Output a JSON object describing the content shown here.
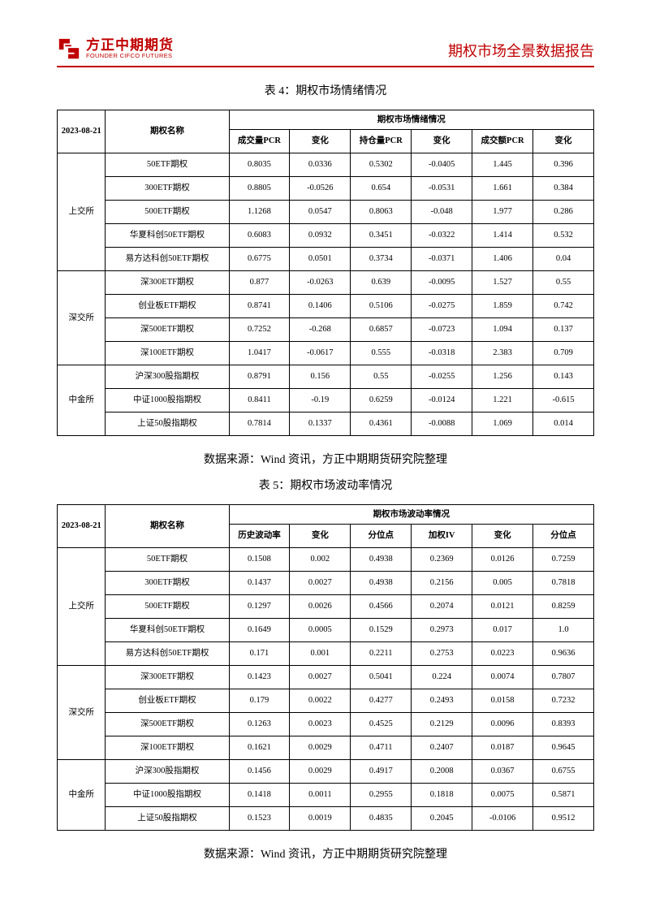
{
  "header": {
    "logo_cn": "方正中期期货",
    "logo_en": "FOUNDER CIFCO FUTURES",
    "report_title": "期权市场全景数据报告",
    "brand_color": "#c00000"
  },
  "date_label": "2023-08-21",
  "name_header": "期权名称",
  "source_line": "数据来源：Wind 资讯，方正中期期货研究院整理",
  "table4": {
    "caption": "表 4：期权市场情绪情况",
    "super_header": "期权市场情绪情况",
    "columns": [
      "成交量PCR",
      "变化",
      "持仓量PCR",
      "变化",
      "成交额PCR",
      "变化"
    ],
    "groups": [
      {
        "exchange": "上交所",
        "rows": [
          {
            "name": "50ETF期权",
            "v": [
              "0.8035",
              "0.0336",
              "0.5302",
              "-0.0405",
              "1.445",
              "0.396"
            ]
          },
          {
            "name": "300ETF期权",
            "v": [
              "0.8805",
              "-0.0526",
              "0.654",
              "-0.0531",
              "1.661",
              "0.384"
            ]
          },
          {
            "name": "500ETF期权",
            "v": [
              "1.1268",
              "0.0547",
              "0.8063",
              "-0.048",
              "1.977",
              "0.286"
            ]
          },
          {
            "name": "华夏科创50ETF期权",
            "v": [
              "0.6083",
              "0.0932",
              "0.3451",
              "-0.0322",
              "1.414",
              "0.532"
            ]
          },
          {
            "name": "易方达科创50ETF期权",
            "v": [
              "0.6775",
              "0.0501",
              "0.3734",
              "-0.0371",
              "1.406",
              "0.04"
            ]
          }
        ]
      },
      {
        "exchange": "深交所",
        "rows": [
          {
            "name": "深300ETF期权",
            "v": [
              "0.877",
              "-0.0263",
              "0.639",
              "-0.0095",
              "1.527",
              "0.55"
            ]
          },
          {
            "name": "创业板ETF期权",
            "v": [
              "0.8741",
              "0.1406",
              "0.5106",
              "-0.0275",
              "1.859",
              "0.742"
            ]
          },
          {
            "name": "深500ETF期权",
            "v": [
              "0.7252",
              "-0.268",
              "0.6857",
              "-0.0723",
              "1.094",
              "0.137"
            ]
          },
          {
            "name": "深100ETF期权",
            "v": [
              "1.0417",
              "-0.0617",
              "0.555",
              "-0.0318",
              "2.383",
              "0.709"
            ]
          }
        ]
      },
      {
        "exchange": "中金所",
        "rows": [
          {
            "name": "沪深300股指期权",
            "v": [
              "0.8791",
              "0.156",
              "0.55",
              "-0.0255",
              "1.256",
              "0.143"
            ]
          },
          {
            "name": "中证1000股指期权",
            "v": [
              "0.8411",
              "-0.19",
              "0.6259",
              "-0.0124",
              "1.221",
              "-0.615"
            ]
          },
          {
            "name": "上证50股指期权",
            "v": [
              "0.7814",
              "0.1337",
              "0.4361",
              "-0.0088",
              "1.069",
              "0.014"
            ]
          }
        ]
      }
    ]
  },
  "table5": {
    "caption": "表 5：期权市场波动率情况",
    "super_header": "期权市场波动率情况",
    "columns": [
      "历史波动率",
      "变化",
      "分位点",
      "加权IV",
      "变化",
      "分位点"
    ],
    "groups": [
      {
        "exchange": "上交所",
        "rows": [
          {
            "name": "50ETF期权",
            "v": [
              "0.1508",
              "0.002",
              "0.4938",
              "0.2369",
              "0.0126",
              "0.7259"
            ]
          },
          {
            "name": "300ETF期权",
            "v": [
              "0.1437",
              "0.0027",
              "0.4938",
              "0.2156",
              "0.005",
              "0.7818"
            ]
          },
          {
            "name": "500ETF期权",
            "v": [
              "0.1297",
              "0.0026",
              "0.4566",
              "0.2074",
              "0.0121",
              "0.8259"
            ]
          },
          {
            "name": "华夏科创50ETF期权",
            "v": [
              "0.1649",
              "0.0005",
              "0.1529",
              "0.2973",
              "0.017",
              "1.0"
            ]
          },
          {
            "name": "易方达科创50ETF期权",
            "v": [
              "0.171",
              "0.001",
              "0.2211",
              "0.2753",
              "0.0223",
              "0.9636"
            ]
          }
        ]
      },
      {
        "exchange": "深交所",
        "rows": [
          {
            "name": "深300ETF期权",
            "v": [
              "0.1423",
              "0.0027",
              "0.5041",
              "0.224",
              "0.0074",
              "0.7807"
            ]
          },
          {
            "name": "创业板ETF期权",
            "v": [
              "0.179",
              "0.0022",
              "0.4277",
              "0.2493",
              "0.0158",
              "0.7232"
            ]
          },
          {
            "name": "深500ETF期权",
            "v": [
              "0.1263",
              "0.0023",
              "0.4525",
              "0.2129",
              "0.0096",
              "0.8393"
            ]
          },
          {
            "name": "深100ETF期权",
            "v": [
              "0.1621",
              "0.0029",
              "0.4711",
              "0.2407",
              "0.0187",
              "0.9645"
            ]
          }
        ]
      },
      {
        "exchange": "中金所",
        "rows": [
          {
            "name": "沪深300股指期权",
            "v": [
              "0.1456",
              "0.0029",
              "0.4917",
              "0.2008",
              "0.0367",
              "0.6755"
            ]
          },
          {
            "name": "中证1000股指期权",
            "v": [
              "0.1418",
              "0.0011",
              "0.2955",
              "0.1818",
              "0.0075",
              "0.5871"
            ]
          },
          {
            "name": "上证50股指期权",
            "v": [
              "0.1523",
              "0.0019",
              "0.4835",
              "0.2045",
              "-0.0106",
              "0.9512"
            ]
          }
        ]
      }
    ]
  }
}
